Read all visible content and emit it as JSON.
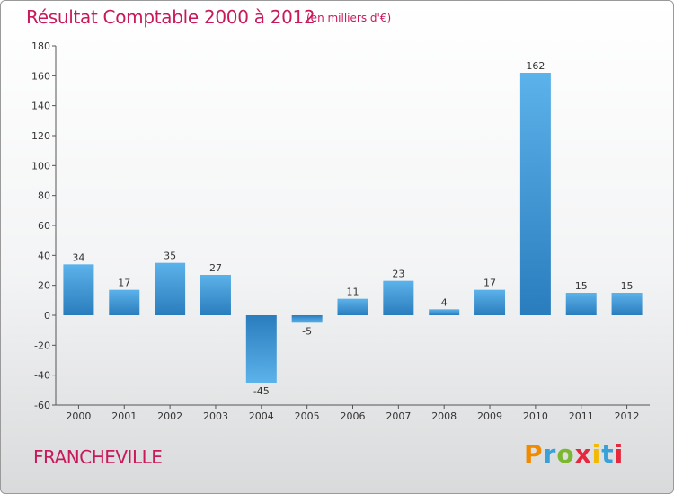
{
  "title": "Résultat Comptable 2000 à 2012",
  "subtitle": "(en milliers d'€)",
  "place": "FRANCHEVILLE",
  "logo": {
    "letters": [
      "P",
      "r",
      "o",
      "x",
      "i",
      "t",
      "i"
    ],
    "colors": [
      "#f08a00",
      "#3aa0d8",
      "#7cb82f",
      "#e5283e",
      "#f2b900",
      "#3aa0d8",
      "#e5283e"
    ]
  },
  "colors": {
    "bar_light": "#5cb2ea",
    "bar_dark": "#2a7dbd",
    "title": "#c8195a"
  },
  "chart_data": {
    "type": "bar",
    "title": "Résultat Comptable 2000 à 2012",
    "ylabel": "(en milliers d'€)",
    "categories": [
      "2000",
      "2001",
      "2002",
      "2003",
      "2004",
      "2005",
      "2006",
      "2007",
      "2008",
      "2009",
      "2010",
      "2011",
      "2012"
    ],
    "values": [
      34,
      17,
      35,
      27,
      -45,
      -5,
      11,
      23,
      4,
      17,
      162,
      15,
      15
    ],
    "ylim": [
      -60,
      180
    ],
    "yticks": [
      -60,
      -40,
      -20,
      0,
      20,
      40,
      60,
      80,
      100,
      120,
      140,
      160,
      180
    ],
    "grid": false
  }
}
